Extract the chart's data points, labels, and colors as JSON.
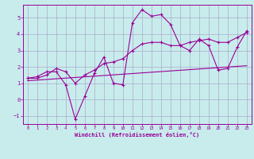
{
  "xlabel": "Windchill (Refroidissement éolien,°C)",
  "bg_color": "#c8ecec",
  "grid_color": "#aaaacc",
  "line_color": "#990099",
  "xlim": [
    -0.5,
    23.5
  ],
  "ylim": [
    -1.5,
    5.8
  ],
  "yticks": [
    -1,
    0,
    1,
    2,
    3,
    4,
    5
  ],
  "xticks": [
    0,
    1,
    2,
    3,
    4,
    5,
    6,
    7,
    8,
    9,
    10,
    11,
    12,
    13,
    14,
    15,
    16,
    17,
    18,
    19,
    20,
    21,
    22,
    23
  ],
  "x": [
    0,
    1,
    2,
    3,
    4,
    5,
    6,
    7,
    8,
    9,
    10,
    11,
    12,
    13,
    14,
    15,
    16,
    17,
    18,
    19,
    20,
    21,
    22,
    23
  ],
  "y_jagged": [
    1.3,
    1.4,
    1.7,
    1.7,
    0.9,
    -1.2,
    0.2,
    1.6,
    2.6,
    1.0,
    0.9,
    4.7,
    5.5,
    5.1,
    5.2,
    4.6,
    3.3,
    3.0,
    3.7,
    3.3,
    1.8,
    1.9,
    3.2,
    4.2
  ],
  "y_smooth": [
    1.3,
    1.3,
    1.5,
    1.9,
    1.7,
    1.0,
    1.5,
    1.8,
    2.2,
    2.3,
    2.5,
    3.0,
    3.4,
    3.5,
    3.5,
    3.3,
    3.3,
    3.5,
    3.6,
    3.7,
    3.5,
    3.5,
    3.8,
    4.1
  ],
  "y_linear": [
    1.15,
    1.19,
    1.23,
    1.27,
    1.31,
    1.35,
    1.39,
    1.43,
    1.47,
    1.51,
    1.55,
    1.59,
    1.63,
    1.67,
    1.71,
    1.75,
    1.79,
    1.83,
    1.87,
    1.91,
    1.95,
    1.99,
    2.03,
    2.07
  ]
}
